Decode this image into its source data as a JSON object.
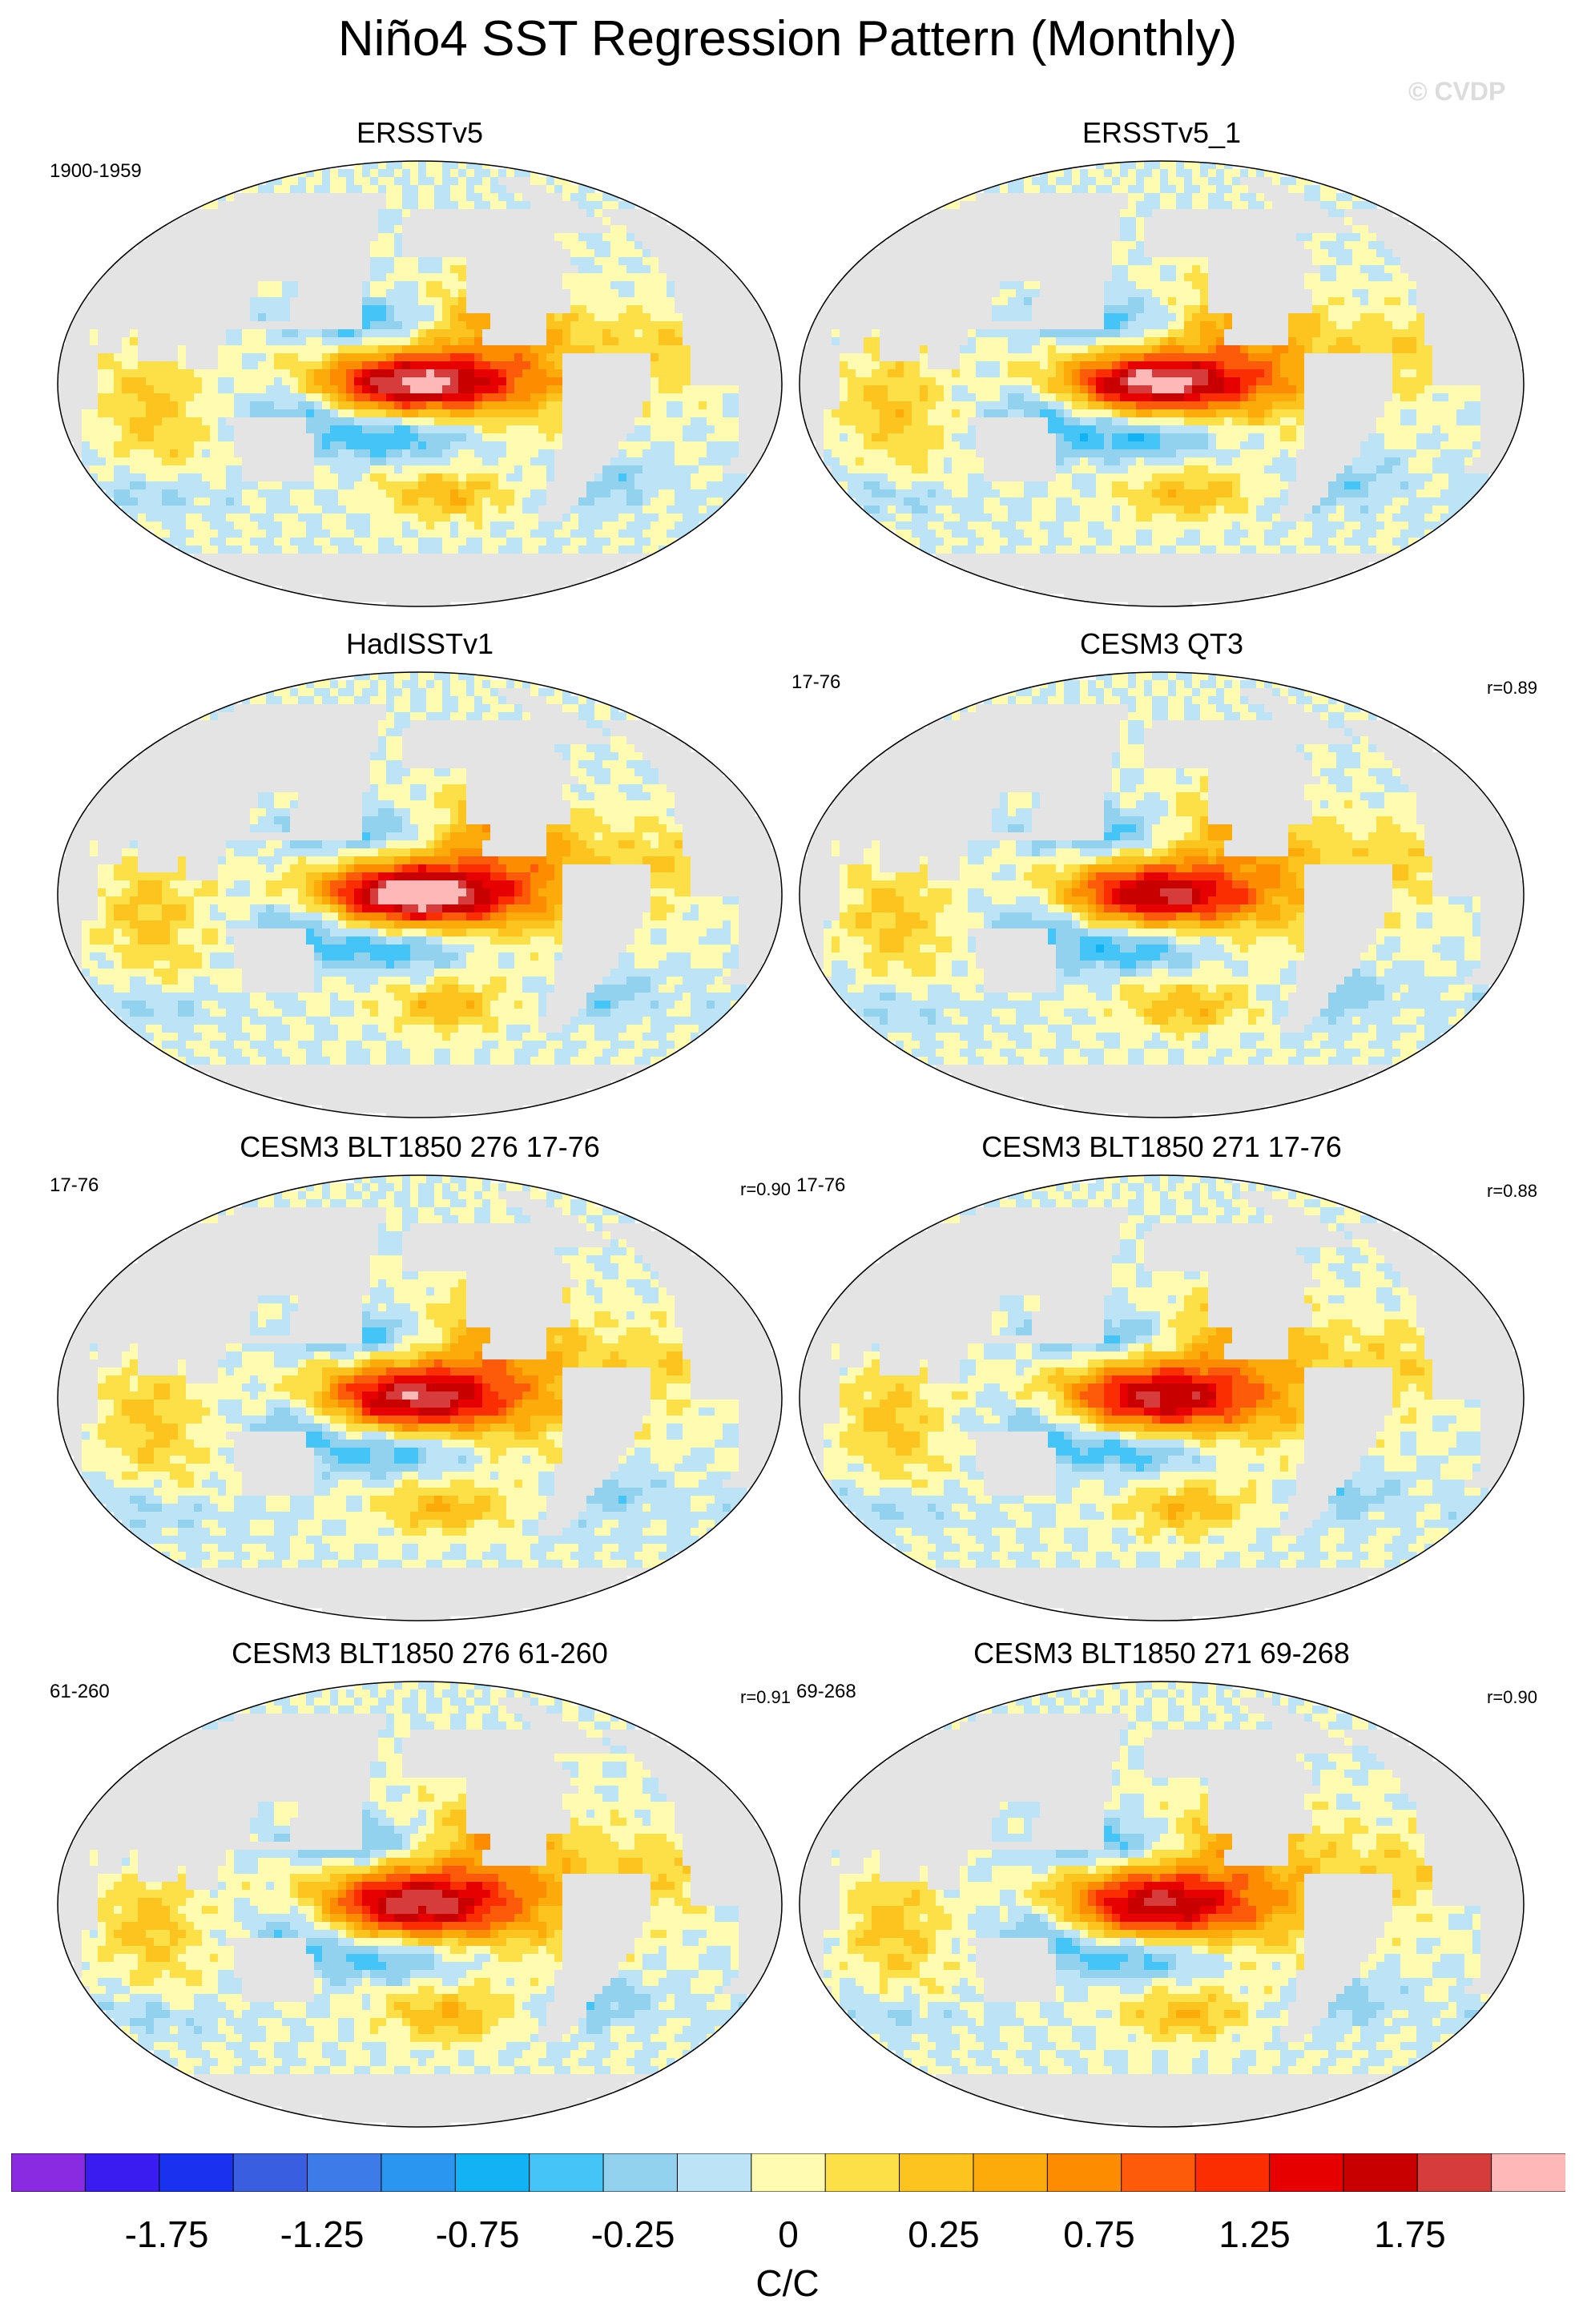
{
  "figure": {
    "title": "Niño4 SST Regression Pattern (Monthly)",
    "watermark": "© CVDP"
  },
  "panels": [
    {
      "title": "ERSSTv5",
      "period": "1900-1959",
      "r": "",
      "intensity": 1.0,
      "warm_lat_spread": 1.0
    },
    {
      "title": "ERSSTv5_1",
      "period": "",
      "r": "",
      "intensity": 1.0,
      "warm_lat_spread": 1.0
    },
    {
      "title": "HadISSTv1",
      "period": "",
      "r": "",
      "intensity": 1.1,
      "warm_lat_spread": 1.05
    },
    {
      "title": "CESM3 QT3",
      "period": "17-76",
      "r": "r=0.89",
      "intensity": 0.85,
      "warm_lat_spread": 1.1
    },
    {
      "title": "CESM3 BLT1850 276 17-76",
      "period": "17-76",
      "r": "r=0.90",
      "intensity": 0.9,
      "warm_lat_spread": 1.2
    },
    {
      "title": "CESM3 BLT1850 271 17-76",
      "period": "17-76",
      "r": "r=0.88",
      "intensity": 0.85,
      "warm_lat_spread": 1.2
    },
    {
      "title": "CESM3 BLT1850 276 61-260",
      "period": "61-260",
      "r": "r=0.91",
      "intensity": 0.9,
      "warm_lat_spread": 1.25
    },
    {
      "title": "CESM3 BLT1850 271 69-268",
      "period": "69-268",
      "r": "r=0.90",
      "intensity": 0.85,
      "warm_lat_spread": 1.2
    }
  ],
  "colorbar": {
    "units": "C/C",
    "tick_labels": [
      "-1.75",
      "-1.25",
      "-0.75",
      "-0.25",
      "0",
      "0.25",
      "0.75",
      "1.25",
      "1.75"
    ],
    "colors": [
      "#8a2be2",
      "#3a1cf0",
      "#1a32f0",
      "#3a5ee0",
      "#3d7ce8",
      "#2b96f0",
      "#12b2f5",
      "#44c4f7",
      "#92d2ef",
      "#bde3f6",
      "#fffbb0",
      "#fde048",
      "#fdc420",
      "#fdab0a",
      "#fd8c00",
      "#fd5a0a",
      "#fa2e00",
      "#e60000",
      "#c80000",
      "#d63c3c",
      "#ffb8b8"
    ]
  }
}
